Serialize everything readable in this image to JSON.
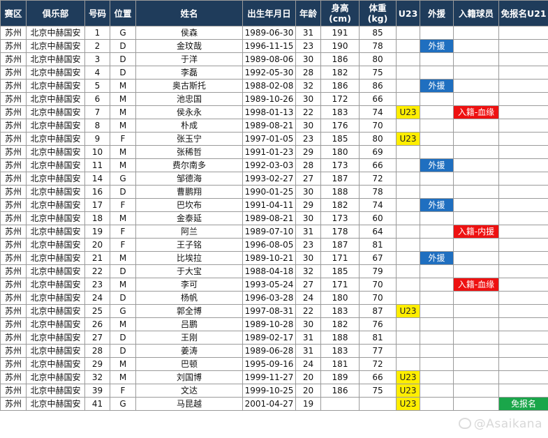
{
  "headers": [
    "赛区",
    "俱乐部",
    "号码",
    "位置",
    "姓名",
    "出生年月日",
    "年龄",
    "身高\n(cm)",
    "体重\n(kg)",
    "U23",
    "外援",
    "入籍球员",
    "免报名U21"
  ],
  "rows": [
    [
      "苏州",
      "北京中赫国安",
      "1",
      "G",
      "侯森",
      "1989-06-30",
      "31",
      "191",
      "85",
      "",
      "",
      "",
      ""
    ],
    [
      "苏州",
      "北京中赫国安",
      "2",
      "D",
      "金玟哉",
      "1996-11-15",
      "23",
      "190",
      "78",
      "",
      "外援",
      "",
      ""
    ],
    [
      "苏州",
      "北京中赫国安",
      "3",
      "D",
      "于洋",
      "1989-08-06",
      "30",
      "186",
      "80",
      "",
      "",
      "",
      ""
    ],
    [
      "苏州",
      "北京中赫国安",
      "4",
      "D",
      "李磊",
      "1992-05-30",
      "28",
      "182",
      "75",
      "",
      "",
      "",
      ""
    ],
    [
      "苏州",
      "北京中赫国安",
      "5",
      "M",
      "奥古斯托",
      "1988-02-08",
      "32",
      "186",
      "86",
      "",
      "外援",
      "",
      ""
    ],
    [
      "苏州",
      "北京中赫国安",
      "6",
      "M",
      "池忠国",
      "1989-10-26",
      "30",
      "172",
      "66",
      "",
      "",
      "",
      ""
    ],
    [
      "苏州",
      "北京中赫国安",
      "7",
      "M",
      "侯永永",
      "1998-01-13",
      "22",
      "183",
      "74",
      "U23",
      "",
      "入籍-血缘",
      ""
    ],
    [
      "苏州",
      "北京中赫国安",
      "8",
      "M",
      "朴成",
      "1989-08-21",
      "30",
      "176",
      "70",
      "",
      "",
      "",
      ""
    ],
    [
      "苏州",
      "北京中赫国安",
      "9",
      "F",
      "张玉宁",
      "1997-01-05",
      "23",
      "185",
      "80",
      "U23",
      "",
      "",
      ""
    ],
    [
      "苏州",
      "北京中赫国安",
      "10",
      "M",
      "张稀哲",
      "1991-01-23",
      "29",
      "180",
      "69",
      "",
      "",
      "",
      ""
    ],
    [
      "苏州",
      "北京中赫国安",
      "11",
      "M",
      "费尔南多",
      "1992-03-03",
      "28",
      "173",
      "66",
      "",
      "外援",
      "",
      ""
    ],
    [
      "苏州",
      "北京中赫国安",
      "14",
      "G",
      "邹德海",
      "1993-02-27",
      "27",
      "187",
      "72",
      "",
      "",
      "",
      ""
    ],
    [
      "苏州",
      "北京中赫国安",
      "16",
      "D",
      "曹鹏翔",
      "1990-01-25",
      "30",
      "188",
      "78",
      "",
      "",
      "",
      ""
    ],
    [
      "苏州",
      "北京中赫国安",
      "17",
      "F",
      "巴坎布",
      "1991-04-11",
      "29",
      "182",
      "74",
      "",
      "外援",
      "",
      ""
    ],
    [
      "苏州",
      "北京中赫国安",
      "18",
      "M",
      "金泰延",
      "1989-08-21",
      "30",
      "173",
      "60",
      "",
      "",
      "",
      ""
    ],
    [
      "苏州",
      "北京中赫国安",
      "19",
      "F",
      "阿兰",
      "1989-07-10",
      "31",
      "178",
      "64",
      "",
      "",
      "入籍-内援",
      ""
    ],
    [
      "苏州",
      "北京中赫国安",
      "20",
      "F",
      "王子铭",
      "1996-08-05",
      "23",
      "187",
      "81",
      "",
      "",
      "",
      ""
    ],
    [
      "苏州",
      "北京中赫国安",
      "21",
      "M",
      "比埃拉",
      "1989-10-21",
      "30",
      "171",
      "67",
      "",
      "外援",
      "",
      ""
    ],
    [
      "苏州",
      "北京中赫国安",
      "22",
      "D",
      "于大宝",
      "1988-04-18",
      "32",
      "185",
      "79",
      "",
      "",
      "",
      ""
    ],
    [
      "苏州",
      "北京中赫国安",
      "23",
      "M",
      "李可",
      "1993-05-24",
      "27",
      "171",
      "70",
      "",
      "",
      "入籍-血缘",
      ""
    ],
    [
      "苏州",
      "北京中赫国安",
      "24",
      "D",
      "杨帆",
      "1996-03-28",
      "24",
      "180",
      "70",
      "",
      "",
      "",
      ""
    ],
    [
      "苏州",
      "北京中赫国安",
      "25",
      "G",
      "郭全博",
      "1997-08-31",
      "22",
      "183",
      "87",
      "U23",
      "",
      "",
      ""
    ],
    [
      "苏州",
      "北京中赫国安",
      "26",
      "M",
      "吕鹏",
      "1989-10-28",
      "30",
      "182",
      "76",
      "",
      "",
      "",
      ""
    ],
    [
      "苏州",
      "北京中赫国安",
      "27",
      "D",
      "王刚",
      "1989-02-17",
      "31",
      "188",
      "81",
      "",
      "",
      "",
      ""
    ],
    [
      "苏州",
      "北京中赫国安",
      "28",
      "D",
      "姜涛",
      "1989-06-28",
      "31",
      "183",
      "77",
      "",
      "",
      "",
      ""
    ],
    [
      "苏州",
      "北京中赫国安",
      "29",
      "M",
      "巴顿",
      "1995-09-16",
      "24",
      "181",
      "72",
      "",
      "",
      "",
      ""
    ],
    [
      "苏州",
      "北京中赫国安",
      "32",
      "M",
      "刘国博",
      "1999-11-27",
      "20",
      "189",
      "66",
      "U23",
      "",
      "",
      ""
    ],
    [
      "苏州",
      "北京中赫国安",
      "39",
      "F",
      "文达",
      "1999-10-25",
      "20",
      "186",
      "75",
      "U23",
      "",
      "",
      ""
    ],
    [
      "苏州",
      "北京中赫国安",
      "41",
      "G",
      "马昆越",
      "2001-04-27",
      "19",
      "",
      "",
      "U23",
      "",
      "",
      "免报名"
    ]
  ],
  "watermark": "@Asaikana",
  "colors": {
    "header_bg": "#1f3c5b",
    "u23": "#ffee00",
    "foreign": "#1f6fc0",
    "naturalized": "#ee1111",
    "exempt": "#1aa64a"
  }
}
